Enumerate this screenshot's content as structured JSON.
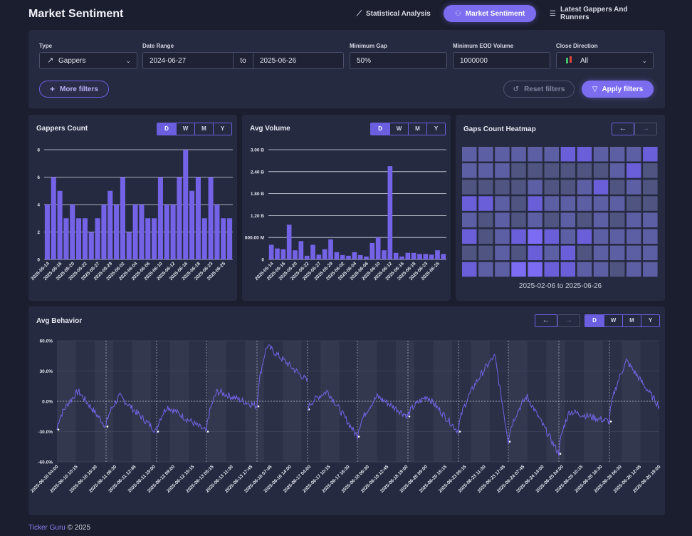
{
  "page": {
    "title": "Market Sentiment"
  },
  "nav": [
    {
      "label": "Statistical Analysis",
      "icon": "chart-icon"
    },
    {
      "label": "Market Sentiment",
      "icon": "sentiment-icon",
      "active": true
    },
    {
      "label": "Latest Gappers And Runners",
      "icon": "list-icon"
    }
  ],
  "filters": {
    "type": {
      "label": "Type",
      "value": "Gappers"
    },
    "date_range": {
      "label": "Date Range",
      "from": "2024-06-27",
      "sep": "to",
      "to": "2025-06-26"
    },
    "min_gap": {
      "label": "Minimum Gap",
      "value": "50%"
    },
    "min_volume": {
      "label": "Minimum EOD Volume",
      "value": "1000000"
    },
    "close_direction": {
      "label": "Close Direction",
      "value": "All"
    },
    "more_filters": "More filters",
    "reset": "Reset filters",
    "apply": "Apply filters"
  },
  "periods": [
    "D",
    "W",
    "M",
    "Y"
  ],
  "gappers_chart": {
    "title": "Gappers Count"
  },
  "volume_chart": {
    "title": "Avg Volume"
  },
  "heatmap": {
    "title": "Gaps Count Heatmap",
    "range": "2025-02-06 to 2025-06-26",
    "cells": [
      [
        2,
        2,
        2,
        2,
        2,
        2,
        3,
        3,
        2,
        2,
        2,
        3
      ],
      [
        2,
        2,
        2,
        1,
        1,
        1,
        1,
        1,
        1,
        2,
        3,
        1
      ],
      [
        1,
        1,
        1,
        1,
        2,
        1,
        1,
        2,
        3,
        1,
        2,
        1
      ],
      [
        3,
        3,
        2,
        1,
        3,
        2,
        2,
        2,
        2,
        2,
        1,
        1
      ],
      [
        2,
        1,
        2,
        1,
        2,
        1,
        2,
        1,
        2,
        1,
        2,
        2
      ],
      [
        3,
        1,
        2,
        3,
        4,
        3,
        2,
        3,
        2,
        2,
        2,
        2
      ],
      [
        1,
        1,
        2,
        1,
        3,
        2,
        3,
        1,
        2,
        2,
        2,
        2
      ],
      [
        3,
        2,
        2,
        4,
        4,
        3,
        3,
        2,
        2,
        1,
        2,
        2
      ]
    ]
  },
  "behavior": {
    "title": "Avg Behavior"
  },
  "footer": {
    "brand": "Ticker Guru",
    "copy": "© 2025"
  },
  "colors": {
    "accent": "#7b6cf0",
    "bar": "#7463e6",
    "bg": "#1b1e2e",
    "panel": "#262a40"
  },
  "chart_data": [
    {
      "type": "bar",
      "title": "Gappers Count",
      "categories": [
        "2025-05-14",
        "",
        "2025-05-16",
        "",
        "2025-05-20",
        "",
        "2025-05-22",
        "",
        "2025-05-27",
        "",
        "2025-05-29",
        "",
        "2025-06-02",
        "",
        "2025-06-04",
        "",
        "2025-06-06",
        "",
        "2025-06-10",
        "",
        "2025-06-12",
        "",
        "2025-06-16",
        "",
        "2025-06-18",
        "",
        "2025-06-23",
        "",
        "2025-06-25",
        ""
      ],
      "values": [
        4,
        6,
        5,
        3,
        4,
        3,
        3,
        2,
        3,
        4,
        5,
        4,
        6,
        2,
        4,
        4,
        3,
        3,
        6,
        4,
        4,
        6,
        8,
        5,
        6,
        3,
        6,
        4,
        3,
        3
      ],
      "ylim": [
        0,
        8
      ],
      "yticks": [
        "0",
        "2",
        "4",
        "6",
        "8"
      ]
    },
    {
      "type": "bar",
      "title": "Avg Volume",
      "categories": [
        "2025-05-14",
        "",
        "2025-05-16",
        "",
        "2025-05-20",
        "",
        "2025-05-22",
        "",
        "2025-05-27",
        "",
        "2025-05-29",
        "",
        "2025-06-02",
        "",
        "2025-06-04",
        "",
        "2025-06-06",
        "",
        "2025-06-10",
        "",
        "2025-06-12",
        "",
        "2025-06-16",
        "",
        "2025-06-18",
        "",
        "2025-06-23",
        "",
        "2025-06-25",
        ""
      ],
      "values": [
        400,
        300,
        280,
        950,
        250,
        500,
        100,
        400,
        130,
        280,
        550,
        200,
        120,
        100,
        200,
        120,
        80,
        450,
        600,
        250,
        2550,
        180,
        80,
        180,
        180,
        150,
        150,
        130,
        250,
        150
      ],
      "ylim": [
        0,
        3000
      ],
      "yticks": [
        "0",
        "600.00 M",
        "1.20 B",
        "1.80 B",
        "2.40 B",
        "3.00 B"
      ]
    },
    {
      "type": "line",
      "title": "Avg Behavior",
      "series": [
        {
          "values": []
        }
      ],
      "ylim": [
        -60,
        60
      ],
      "yticks": [
        "-60.0%",
        "-30.0%",
        "0.0%",
        "30.0%",
        "60.0%"
      ],
      "xticks": [
        "2025-06-10 04:00",
        "2025-06-10 10:15",
        "2025-06-10 16:30",
        "2025-06-11 06:30",
        "2025-06-11 12:45",
        "2025-06-11 19:00",
        "2025-06-12 09:00",
        "2025-06-12 15:15",
        "2025-06-13 05:15",
        "2025-06-13 11:30",
        "2025-06-13 17:45",
        "2025-06-16 07:45",
        "2025-06-16 14:00",
        "2025-06-17 04:00",
        "2025-06-17 10:15",
        "2025-06-17 16:30",
        "2025-06-18 06:30",
        "2025-06-18 12:45",
        "2025-06-18 19:00",
        "2025-06-20 09:00",
        "2025-06-20 15:15",
        "2025-06-23 05:15",
        "2025-06-23 11:30",
        "2025-06-23 17:45",
        "2025-06-24 07:45",
        "2025-06-24 14:00",
        "2025-06-25 04:00",
        "2025-06-25 10:15",
        "2025-06-25 16:30",
        "2025-06-26 06:30",
        "2025-06-26 12:45",
        "2025-06-26 19:00"
      ]
    }
  ]
}
